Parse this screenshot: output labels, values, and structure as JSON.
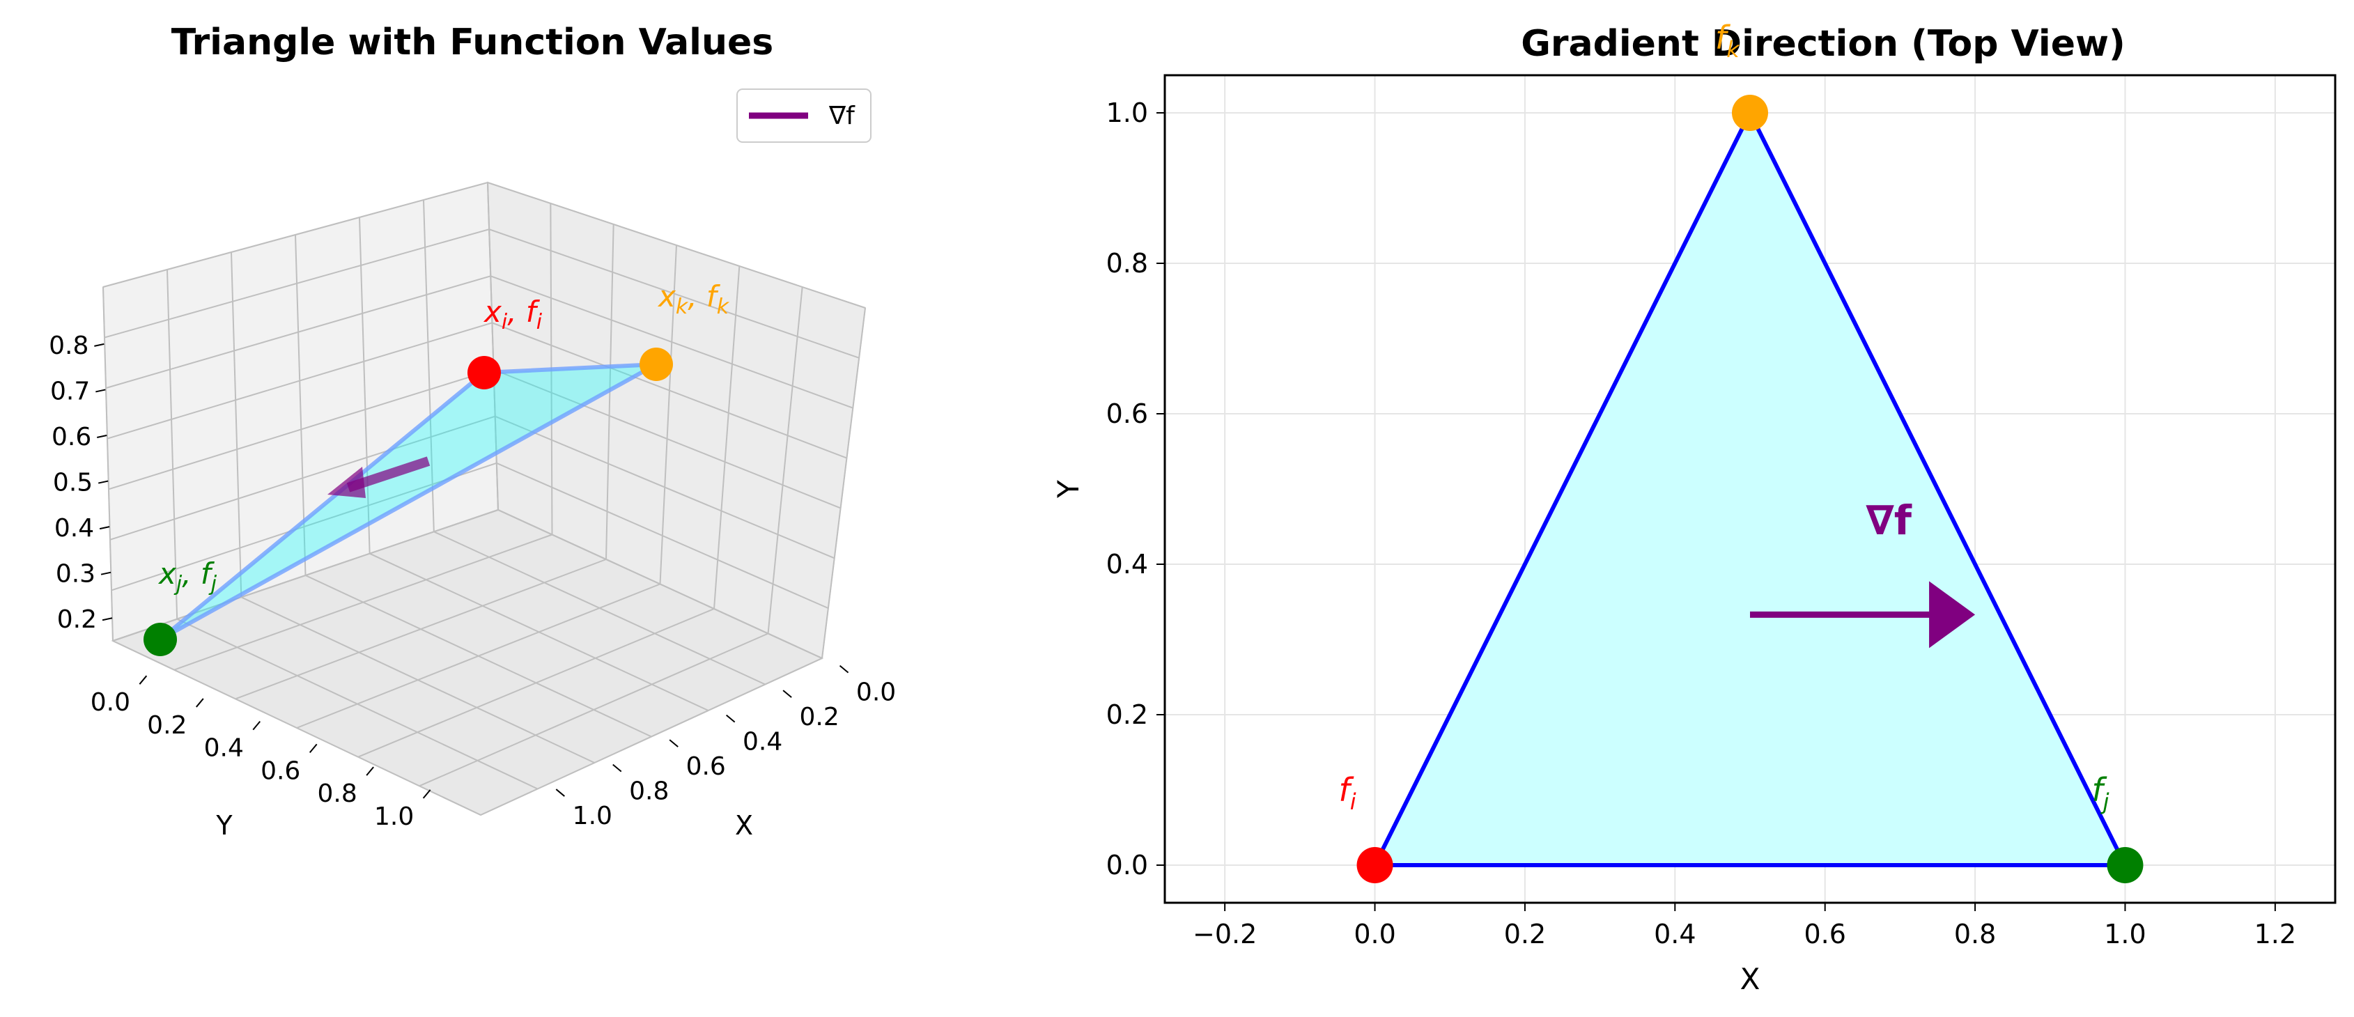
{
  "chart_data": [
    {
      "type": "surface3d",
      "title": "Triangle with Function Values",
      "xlabel": "X",
      "ylabel": "Y",
      "xticks": [
        "0.0",
        "0.2",
        "0.4",
        "0.6",
        "0.8",
        "1.0"
      ],
      "yticks": [
        "0.0",
        "0.2",
        "0.4",
        "0.6",
        "0.8",
        "1.0"
      ],
      "zticks": [
        "0.2",
        "0.3",
        "0.4",
        "0.5",
        "0.6",
        "0.7",
        "0.8"
      ],
      "xlim": [
        0,
        1
      ],
      "ylim": [
        0,
        1
      ],
      "zlim": [
        0.2,
        0.8
      ],
      "vertices": [
        {
          "label": "x_i, f_i",
          "x": 0.0,
          "y": 0.0,
          "z": 0.8,
          "color": "#ff0000"
        },
        {
          "label": "x_j, f_j",
          "x": 1.0,
          "y": 0.0,
          "z": 0.2,
          "color": "#008000"
        },
        {
          "label": "x_k, f_k",
          "x": 0.5,
          "y": 1.0,
          "z": 0.5,
          "color": "#ffa500"
        }
      ],
      "gradient_arrow": {
        "from": [
          0.33,
          0.33,
          0.5
        ],
        "to": [
          0.63,
          0.33,
          0.5
        ]
      },
      "legend": {
        "entries": [
          "∇f"
        ],
        "position": "upper-right"
      },
      "grid": true,
      "fill_color": "#00ffff",
      "edge_color": "#6fa0ff",
      "arrow_color": "#800080"
    },
    {
      "type": "triangle",
      "title": "Gradient Direction (Top View)",
      "xlabel": "X",
      "ylabel": "Y",
      "xticks": [
        "−0.2",
        "0.0",
        "0.2",
        "0.4",
        "0.6",
        "0.8",
        "1.0",
        "1.2"
      ],
      "yticks": [
        "0.0",
        "0.2",
        "0.4",
        "0.6",
        "0.8",
        "1.0"
      ],
      "xlim": [
        -0.28,
        1.28
      ],
      "ylim": [
        -0.05,
        1.05
      ],
      "vertices": [
        {
          "label": "f_i",
          "x": 0.0,
          "y": 0.0,
          "color": "#ff0000"
        },
        {
          "label": "f_j",
          "x": 1.0,
          "y": 0.0,
          "color": "#008000"
        },
        {
          "label": "f_k",
          "x": 0.5,
          "y": 1.0,
          "color": "#ffa500"
        }
      ],
      "gradient_arrow": {
        "from": [
          0.5,
          0.333
        ],
        "to": [
          0.8,
          0.333
        ],
        "label": "∇f"
      },
      "grid": true,
      "fill_color": "#ccffff",
      "edge_color": "#0000ff",
      "arrow_color": "#800080"
    }
  ]
}
